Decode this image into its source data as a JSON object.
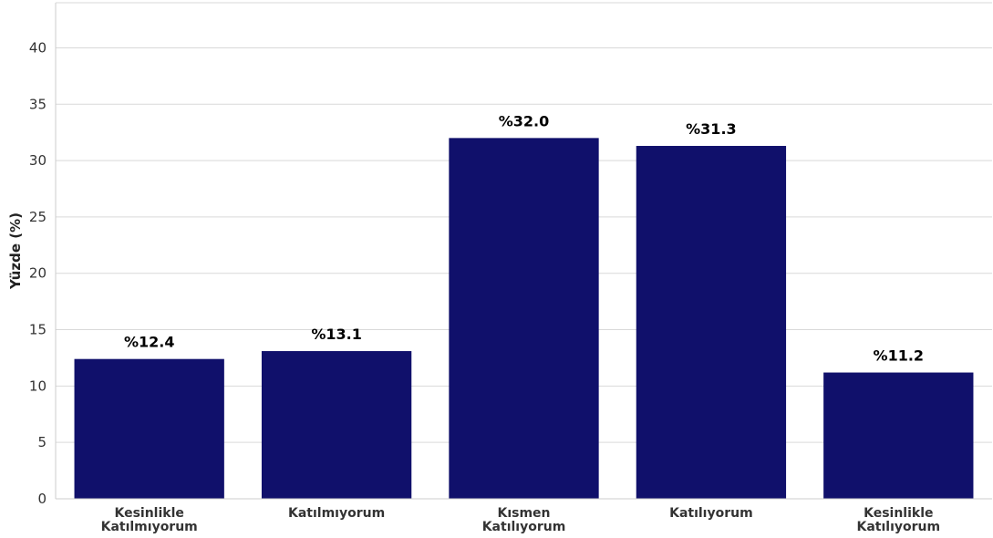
{
  "chart_data": {
    "type": "bar",
    "categories": [
      [
        "Kesinlikle",
        "Katılmıyorum"
      ],
      [
        "Katılmıyorum"
      ],
      [
        "Kısmen",
        "Katılıyorum"
      ],
      [
        "Katılıyorum"
      ],
      [
        "Kesinlikle",
        "Katılıyorum"
      ]
    ],
    "values": [
      12.4,
      13.1,
      32.0,
      31.3,
      11.2
    ],
    "data_labels": [
      "%12.4",
      "%13.1",
      "%32.0",
      "%31.3",
      "%11.2"
    ],
    "title": "",
    "xlabel": "",
    "ylabel": "Yüzde (%)",
    "ylim": [
      0,
      44
    ],
    "yticks": [
      0,
      5,
      10,
      15,
      20,
      25,
      30,
      35,
      40
    ],
    "grid": "y",
    "legend": "none",
    "colors": {
      "bar": "#10106b",
      "grid": "#d9d9d9",
      "spine": "#cccccc"
    }
  }
}
